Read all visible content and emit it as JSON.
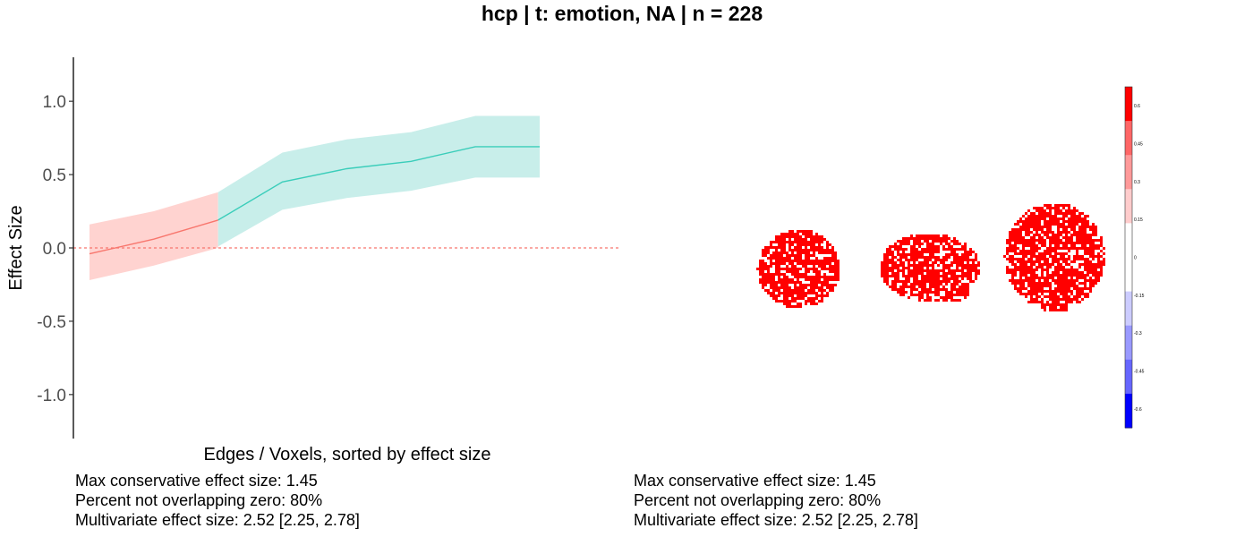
{
  "title": "hcp | t: emotion, NA | n = 228",
  "chart_data": {
    "type": "line",
    "xlabel": "Edges / Voxels, sorted by effect size",
    "ylabel": "Effect Size",
    "ylim": [
      -1.3,
      1.3
    ],
    "yticks": [
      -1.0,
      -0.5,
      0.0,
      0.5,
      1.0
    ],
    "ytick_labels": [
      "-1.0",
      "-0.5",
      "0.0",
      "0.5",
      "1.0"
    ],
    "reference_line": 0.0,
    "grid": false,
    "series": [
      {
        "color": "#F8766D",
        "fill": "#FFD3D0",
        "x": [
          1,
          2,
          3
        ],
        "values": [
          -0.04,
          0.06,
          0.19
        ],
        "lower": [
          -0.22,
          -0.12,
          0.0
        ],
        "upper": [
          0.16,
          0.25,
          0.38
        ]
      },
      {
        "color": "#3ACDBA",
        "fill": "#C8EEEA",
        "x": [
          3,
          4,
          5,
          6,
          7,
          8
        ],
        "values": [
          0.19,
          0.45,
          0.54,
          0.59,
          0.69,
          0.69
        ],
        "lower": [
          0.01,
          0.26,
          0.34,
          0.39,
          0.48,
          0.48
        ],
        "upper": [
          0.38,
          0.65,
          0.74,
          0.79,
          0.9,
          0.9
        ]
      }
    ],
    "xlim": [
      0.75,
      9.35
    ]
  },
  "brain_map": {
    "color": "#FF0000",
    "views": [
      "axial",
      "sagittal",
      "coronal"
    ]
  },
  "colorbar": {
    "colors": [
      "#FF0000",
      "#FF6666",
      "#FF9999",
      "#FFCCCC",
      "#FFFFFF",
      "#FFFFFF",
      "#CCCCFF",
      "#9999FF",
      "#6666FF",
      "#0000FF"
    ],
    "labels": [
      "0.6",
      "0.45",
      "0.3",
      "0.15",
      "0",
      "-0.15",
      "-0.3",
      "-0.45",
      "-0.6"
    ]
  },
  "stats_left": {
    "max_conservative": "Max conservative effect size: 1.45",
    "percent_not_overlapping": "Percent not overlapping zero: 80%",
    "multivariate": "Multivariate effect size: 2.52 [2.25, 2.78]"
  },
  "stats_right": {
    "max_conservative": "Max conservative effect size: 1.45",
    "percent_not_overlapping": "Percent not overlapping zero: 80%",
    "multivariate": "Multivariate effect size: 2.52 [2.25, 2.78]"
  }
}
